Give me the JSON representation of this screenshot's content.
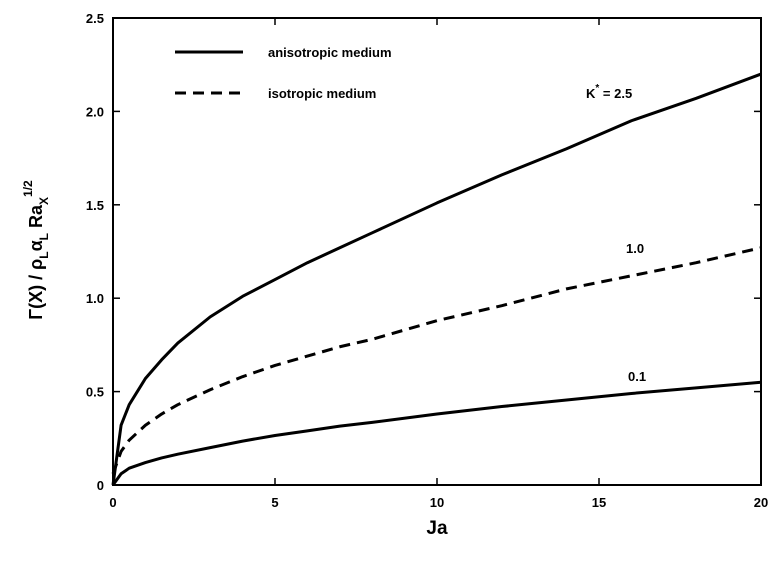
{
  "chart_data": {
    "type": "line",
    "title": "",
    "xlabel": "Ja",
    "ylabel": {
      "text": "Γ(X) / ρ",
      "sub1": "L",
      "alpha": "α",
      "sub2": "L",
      "ra": "Ra",
      "ra_sub": "X",
      "ra_sup": "1/2"
    },
    "xlim": [
      0,
      20
    ],
    "ylim": [
      0,
      2.5
    ],
    "xticks": [
      0,
      5,
      10,
      15,
      20
    ],
    "yticks": [
      0,
      0.5,
      1.0,
      1.5,
      2.0,
      2.5
    ],
    "xtick_labels": [
      "0",
      "5",
      "10",
      "15",
      "20"
    ],
    "ytick_labels": [
      "0",
      "0.5",
      "1.0",
      "1.5",
      "2.0",
      "2.5"
    ],
    "grid": false,
    "legend": {
      "position": "top-left",
      "entries": [
        {
          "label": "anisotropic medium",
          "style": "solid"
        },
        {
          "label": "isotropic medium",
          "style": "dashed"
        }
      ]
    },
    "annotations": [
      {
        "text": "K* = 2.5",
        "main": "K",
        "sup": "*",
        "rest": " = 2.5"
      },
      {
        "text": "1.0"
      },
      {
        "text": "0.1"
      }
    ],
    "series": [
      {
        "style": "solid",
        "x": [
          0,
          0.25,
          0.5,
          1,
          1.5,
          2,
          3,
          4,
          5,
          6,
          7,
          8,
          10,
          12,
          14,
          16,
          18,
          20
        ],
        "y": [
          0,
          0.32,
          0.43,
          0.57,
          0.67,
          0.76,
          0.9,
          1.01,
          1.1,
          1.19,
          1.27,
          1.35,
          1.51,
          1.66,
          1.8,
          1.95,
          2.07,
          2.2
        ]
      },
      {
        "style": "dashed",
        "x": [
          0,
          0.25,
          0.5,
          1,
          1.5,
          2,
          3,
          4,
          5,
          6,
          7,
          8,
          10,
          12,
          14,
          16,
          18,
          20
        ],
        "y": [
          0.06,
          0.18,
          0.24,
          0.32,
          0.38,
          0.43,
          0.51,
          0.58,
          0.64,
          0.69,
          0.74,
          0.78,
          0.88,
          0.96,
          1.05,
          1.12,
          1.19,
          1.27
        ]
      },
      {
        "style": "solid",
        "x": [
          0,
          0.25,
          0.5,
          1,
          1.5,
          2,
          3,
          4,
          5,
          6,
          7,
          8,
          10,
          12,
          14,
          16,
          18,
          20
        ],
        "y": [
          0,
          0.06,
          0.09,
          0.12,
          0.145,
          0.165,
          0.2,
          0.235,
          0.265,
          0.29,
          0.315,
          0.335,
          0.38,
          0.42,
          0.455,
          0.49,
          0.52,
          0.55
        ]
      }
    ]
  }
}
